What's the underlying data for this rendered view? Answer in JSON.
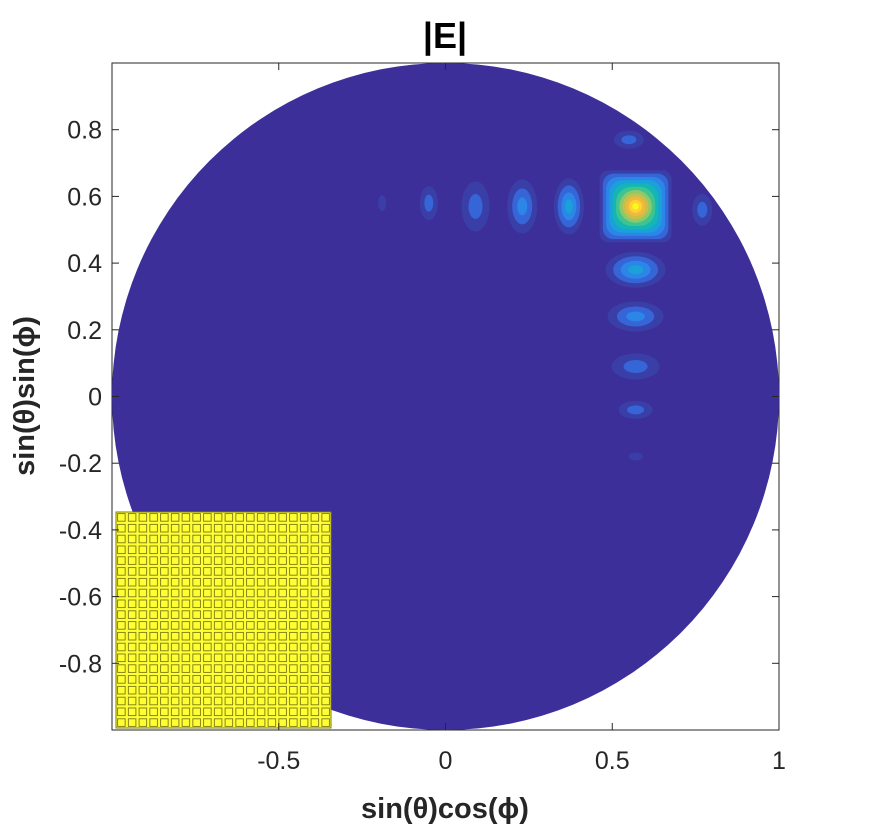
{
  "chart_data": {
    "type": "heatmap",
    "subtype": "filled-contour",
    "title": "|E|",
    "xlabel": "sin(θ)cos(ϕ)",
    "ylabel": "sin(θ)sin(ϕ)",
    "xlim": [
      -1,
      1
    ],
    "ylim": [
      -1,
      1
    ],
    "xticks": [
      -0.5,
      0,
      0.5,
      1
    ],
    "xtick_labels": [
      "-0.5",
      "0",
      "0.5",
      "1"
    ],
    "yticks": [
      0.8,
      0.6,
      0.4,
      0.2,
      0,
      -0.2,
      -0.4,
      -0.6,
      -0.8
    ],
    "ytick_labels": [
      "0.8",
      "0.6",
      "0.4",
      "0.2",
      "0",
      "-0.2",
      "-0.4",
      "-0.6",
      "-0.8"
    ],
    "grid": false,
    "colormap": "parula",
    "background_color": "#3d2f9a",
    "domain": "unit circle",
    "main_beam": {
      "x": 0.57,
      "y": 0.57
    },
    "sidelobes_along_y_equal_0.57": [
      -0.2,
      -0.05,
      0.09,
      0.23,
      0.37,
      0.77
    ],
    "sidelobes_along_x_equal_0.57": [
      0.77,
      0.38,
      0.23,
      0.07,
      -0.04,
      -0.18
    ],
    "inset": {
      "description": "array element layout",
      "rows": 20,
      "cols": 20,
      "element_color": "#ffff33",
      "edge_color": "#7a7a1a"
    }
  }
}
